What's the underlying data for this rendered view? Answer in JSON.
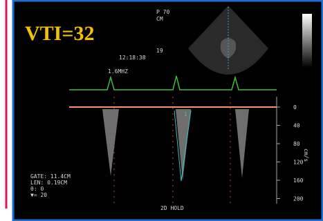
{
  "overlay": {
    "title": "VTI=32"
  },
  "header": {
    "probe": "P 70",
    "unit": "CM",
    "frame": "19",
    "time": "12:18:38",
    "frequency": "1.6MHZ"
  },
  "scale": {
    "ticks": [
      "0",
      "40",
      "80",
      "120",
      "160",
      "200"
    ],
    "unit": "cm/s"
  },
  "marker": "1",
  "settings": [
    "GATE: 11.4CM",
    "LEN: 0.19CM",
    "θ: 0",
    "▼= 20"
  ],
  "status": "2D HOLD"
}
